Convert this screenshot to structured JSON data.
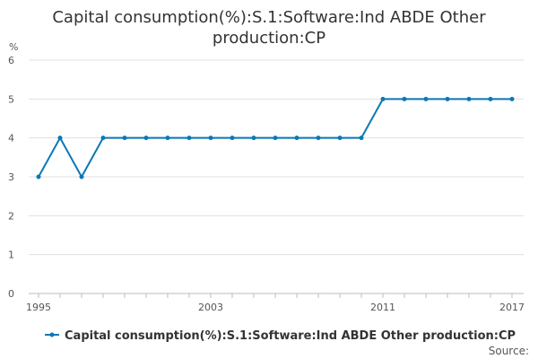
{
  "colors": {
    "series": "#0b78b6",
    "grid": "#e0e0e0",
    "axis": "#bbbbbb",
    "text": "#333333",
    "tick_text": "#555555"
  },
  "chart_data": {
    "type": "line",
    "title_lines": [
      "Capital consumption(%):S.1:Software:Ind ABDE Other",
      "production:CP"
    ],
    "ylabel": "%",
    "xlabel": "",
    "x": [
      1995,
      1996,
      1997,
      1998,
      1999,
      2000,
      2001,
      2002,
      2003,
      2004,
      2005,
      2006,
      2007,
      2008,
      2009,
      2010,
      2011,
      2012,
      2013,
      2014,
      2015,
      2016,
      2017
    ],
    "series": [
      {
        "name": "Capital consumption(%):S.1:Software:Ind ABDE Other production:CP",
        "values": [
          3,
          4,
          3,
          4,
          4,
          4,
          4,
          4,
          4,
          4,
          4,
          4,
          4,
          4,
          4,
          4,
          5,
          5,
          5,
          5,
          5,
          5,
          5
        ]
      }
    ],
    "xlim": [
      1995,
      2017
    ],
    "ylim": [
      0,
      6
    ],
    "y_ticks": [
      0,
      1,
      2,
      3,
      4,
      5,
      6
    ],
    "x_tick_labels": [
      1995,
      2003,
      2011,
      2017
    ],
    "grid": true,
    "legend_position": "bottom-center",
    "source_label": "Source:"
  }
}
